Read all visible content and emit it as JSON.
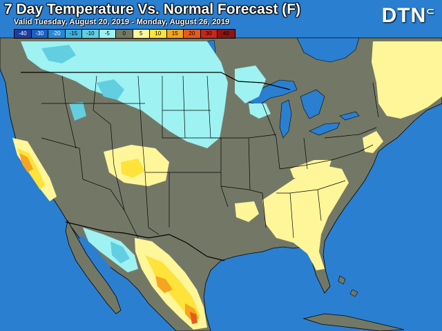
{
  "title": "7 Day Temperature Vs. Normal Forecast (F)",
  "subtitle": "Valid Tuesday, August 20, 2019 - Monday, August 26, 2019",
  "logo": "DTN",
  "legend": [
    {
      "label": "-40",
      "color": "#1e3c9c",
      "text": "#ffffff"
    },
    {
      "label": "-30",
      "color": "#1c5fbf",
      "text": "#ffffff"
    },
    {
      "label": "-20",
      "color": "#2a86d4",
      "text": "#ffffff"
    },
    {
      "label": "-15",
      "color": "#3fb0d8",
      "text": "#000000"
    },
    {
      "label": "-10",
      "color": "#62cfe0",
      "text": "#000000"
    },
    {
      "label": "-5",
      "color": "#9ef2f2",
      "text": "#000000"
    },
    {
      "label": "0",
      "color": "#737866",
      "text": "#000000"
    },
    {
      "label": "5",
      "color": "#fff699",
      "text": "#000000"
    },
    {
      "label": "10",
      "color": "#ffe23a",
      "text": "#000000"
    },
    {
      "label": "15",
      "color": "#f5a51f",
      "text": "#000000"
    },
    {
      "label": "20",
      "color": "#e85a1c",
      "text": "#000000"
    },
    {
      "label": "30",
      "color": "#c8261b",
      "text": "#000000"
    },
    {
      "label": "40",
      "color": "#8c1414",
      "text": "#000000"
    }
  ],
  "colors": {
    "ocean": "#2a7fd0",
    "land_normal": "#737866",
    "lakes": "#2a7fd0"
  }
}
